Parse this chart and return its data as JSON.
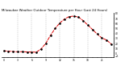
{
  "title": "Milwaukee Weather Outdoor Temperature per Hour (Last 24 Hours)",
  "hours": [
    0,
    1,
    2,
    3,
    4,
    5,
    6,
    7,
    8,
    9,
    10,
    11,
    12,
    13,
    14,
    15,
    16,
    17,
    18,
    19,
    20,
    21,
    22,
    23
  ],
  "temps": [
    5.0,
    4.5,
    3.8,
    3.2,
    3.5,
    3.0,
    2.8,
    2.5,
    9.0,
    20.0,
    36.0,
    50.0,
    61.0,
    69.0,
    74.0,
    75.0,
    73.0,
    66.0,
    57.0,
    48.0,
    39.0,
    31.0,
    27.0,
    19.0
  ],
  "line_color": "#dd0000",
  "marker_color": "#000000",
  "grid_color": "#999999",
  "bg_color": "#ffffff",
  "title_color": "#000000",
  "ylim": [
    -8,
    82
  ],
  "xlim": [
    -0.5,
    23.5
  ],
  "yticks": [
    -5,
    0,
    10,
    20,
    30,
    40,
    50,
    60,
    70,
    80
  ],
  "vgrid_positions": [
    3,
    6,
    9,
    12,
    15,
    18,
    21
  ],
  "title_fontsize": 2.8,
  "tick_fontsize": 2.2,
  "line_width": 0.7,
  "marker_size": 0.9
}
